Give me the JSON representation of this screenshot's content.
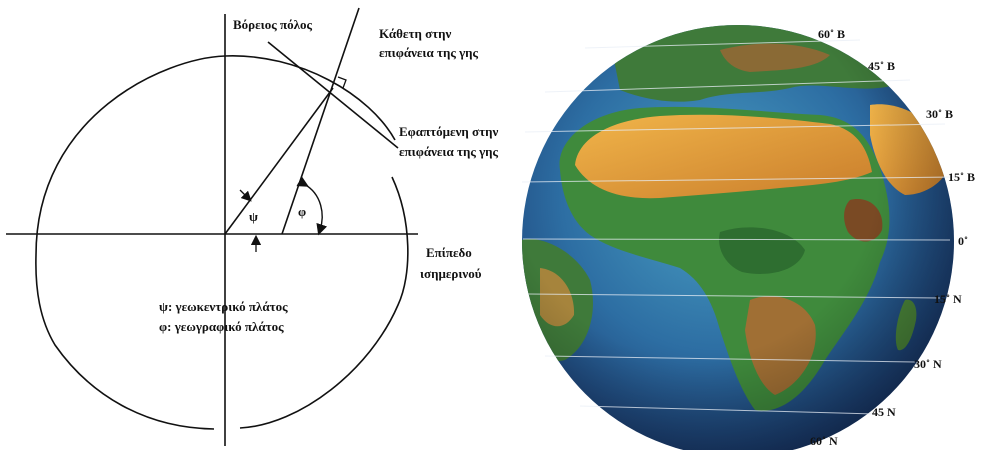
{
  "diagram": {
    "labels": {
      "north_pole": "Βόρειος πόλος",
      "normal_line_1": "Κάθετη στην",
      "normal_line_2": "επιφάνεια της γης",
      "tangent_line_1": "Εφαπτόμενη στην",
      "tangent_line_2": "επιφάνεια της γης",
      "equator_plane_1": "Επίπεδο",
      "equator_plane_2": "ισημερινού",
      "psi_symbol": "ψ",
      "phi_symbol": "φ"
    },
    "legend": {
      "psi": "ψ: γεωκεντρικό πλάτος",
      "phi": "φ: γεωγραφικό πλάτος"
    }
  },
  "globe": {
    "latitudes": [
      "60˚ Β",
      "45˚ Β",
      "30˚ Β",
      "15˚ Β",
      "0˚",
      "15˚ Ν",
      "30˚ Ν",
      "45  Ν",
      "60˚ Ν"
    ],
    "colors": {
      "ocean_deep": "#1b3f78",
      "ocean_shallow": "#3f8fb4",
      "desert": "#e0a23a",
      "savanna": "#b78838",
      "forest": "#3f8a3c",
      "mountain": "#7a4a24"
    }
  }
}
